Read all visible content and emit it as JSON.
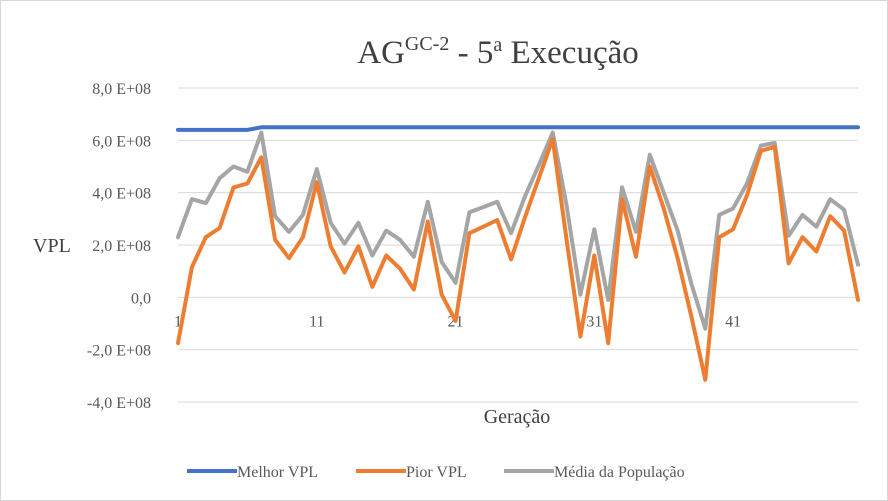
{
  "chart_data": {
    "type": "line",
    "title": {
      "base": "AG",
      "superscript": "GC-2",
      "middle": " - 5",
      "ordinal": "a",
      "end": " Execução"
    },
    "xlabel": "Geração",
    "ylabel": "VPL",
    "ylim": [
      -400000000.0,
      800000000.0
    ],
    "y_ticks": [
      -400000000.0,
      -200000000.0,
      0,
      200000000.0,
      400000000.0,
      600000000.0,
      800000000.0
    ],
    "y_tick_labels": [
      "-4,0 E+08",
      "-2,0 E+08",
      "0,0",
      "2,0 E+08",
      "4,0 E+08",
      "6,0 E+08",
      "8,0 E+08"
    ],
    "x": [
      1,
      2,
      3,
      4,
      5,
      6,
      7,
      8,
      9,
      10,
      11,
      12,
      13,
      14,
      15,
      16,
      17,
      18,
      19,
      20,
      21,
      22,
      23,
      24,
      25,
      26,
      27,
      28,
      29,
      30,
      31,
      32,
      33,
      34,
      35,
      36,
      37,
      38,
      39,
      40,
      41,
      42,
      43,
      44,
      45,
      46,
      47,
      48,
      49,
      50
    ],
    "x_ticks": [
      1,
      11,
      21,
      31,
      41
    ],
    "x_tick_labels": [
      "1",
      "11",
      "21",
      "31",
      "41"
    ],
    "grid": true,
    "legend_position": "bottom",
    "series": [
      {
        "name": "Melhor VPL",
        "color": "#4472c4",
        "values": [
          640000000.0,
          640000000.0,
          640000000.0,
          640000000.0,
          640000000.0,
          640000000.0,
          650000000.0,
          650000000.0,
          650000000.0,
          650000000.0,
          650000000.0,
          650000000.0,
          650000000.0,
          650000000.0,
          650000000.0,
          650000000.0,
          650000000.0,
          650000000.0,
          650000000.0,
          650000000.0,
          650000000.0,
          650000000.0,
          650000000.0,
          650000000.0,
          650000000.0,
          650000000.0,
          650000000.0,
          650000000.0,
          650000000.0,
          650000000.0,
          650000000.0,
          650000000.0,
          650000000.0,
          650000000.0,
          650000000.0,
          650000000.0,
          650000000.0,
          650000000.0,
          650000000.0,
          650000000.0,
          650000000.0,
          650000000.0,
          650000000.0,
          650000000.0,
          650000000.0,
          650000000.0,
          650000000.0,
          650000000.0,
          650000000.0,
          650000000.0
        ]
      },
      {
        "name": "Pior VPL",
        "color": "#ed7d31",
        "values": [
          -175000000.0,
          115000000.0,
          230000000.0,
          265000000.0,
          420000000.0,
          435000000.0,
          535000000.0,
          220000000.0,
          150000000.0,
          230000000.0,
          440000000.0,
          195000000.0,
          95000000.0,
          195000000.0,
          40000000.0,
          160000000.0,
          110000000.0,
          30000000.0,
          290000000.0,
          10000000.0,
          -90000000.0,
          245000000.0,
          270000000.0,
          295000000.0,
          145000000.0,
          305000000.0,
          455000000.0,
          605000000.0,
          220000000.0,
          -150000000.0,
          160000000.0,
          -175000000.0,
          375000000.0,
          155000000.0,
          500000000.0,
          340000000.0,
          150000000.0,
          -75000000.0,
          -315000000.0,
          230000000.0,
          260000000.0,
          390000000.0,
          560000000.0,
          575000000.0,
          130000000.0,
          230000000.0,
          175000000.0,
          310000000.0,
          255000000.0,
          -10000000.0
        ]
      },
      {
        "name": "Média da População",
        "color": "#a5a5a5",
        "values": [
          230000000.0,
          375000000.0,
          360000000.0,
          455000000.0,
          500000000.0,
          480000000.0,
          630000000.0,
          310000000.0,
          250000000.0,
          315000000.0,
          490000000.0,
          285000000.0,
          205000000.0,
          285000000.0,
          160000000.0,
          255000000.0,
          220000000.0,
          155000000.0,
          365000000.0,
          135000000.0,
          55000000.0,
          325000000.0,
          345000000.0,
          365000000.0,
          245000000.0,
          385000000.0,
          505000000.0,
          630000000.0,
          350000000.0,
          10000000.0,
          260000000.0,
          -10000000.0,
          420000000.0,
          250000000.0,
          545000000.0,
          400000000.0,
          255000000.0,
          50000000.0,
          -120000000.0,
          315000000.0,
          340000000.0,
          435000000.0,
          580000000.0,
          590000000.0,
          235000000.0,
          315000000.0,
          270000000.0,
          375000000.0,
          335000000.0,
          125000000.0
        ]
      }
    ]
  }
}
